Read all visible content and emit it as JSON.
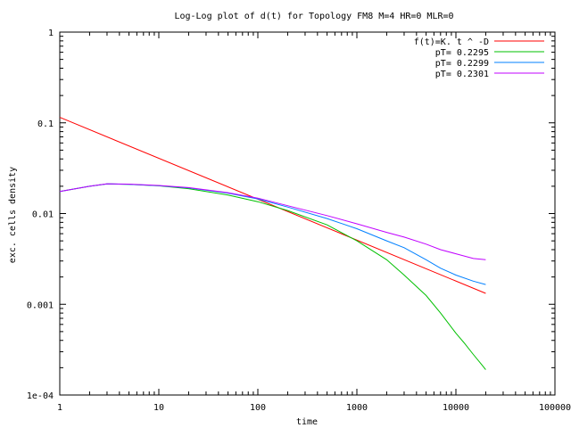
{
  "chart_data": {
    "type": "line",
    "title": "Log-Log plot of d(t) for Topology FM8 M=4 HR=0 MLR=0",
    "xlabel": "time",
    "ylabel": "exc. cells density",
    "xscale": "log",
    "yscale": "log",
    "xlim": [
      1,
      100000
    ],
    "ylim": [
      0.0001,
      1
    ],
    "x_ticks": [
      {
        "value": 1,
        "label": "1"
      },
      {
        "value": 10,
        "label": "10"
      },
      {
        "value": 100,
        "label": "100"
      },
      {
        "value": 1000,
        "label": "1000"
      },
      {
        "value": 10000,
        "label": "10000"
      },
      {
        "value": 100000,
        "label": "100000"
      }
    ],
    "y_ticks": [
      {
        "value": 0.0001,
        "label": "1e-04"
      },
      {
        "value": 0.001,
        "label": "0.001"
      },
      {
        "value": 0.01,
        "label": "0.01"
      },
      {
        "value": 0.1,
        "label": "0.1"
      },
      {
        "value": 1,
        "label": "1"
      }
    ],
    "grid": false,
    "legend_position": "top-right",
    "series": [
      {
        "name": "f(t)=K. t ^ -D",
        "color": "#ff0000",
        "points": [
          [
            1,
            0.115
          ],
          [
            20000,
            0.00132
          ]
        ]
      },
      {
        "name": "pT= 0.2295",
        "color": "#00c000",
        "points": [
          [
            1,
            0.0175
          ],
          [
            2,
            0.02
          ],
          [
            3,
            0.0212
          ],
          [
            5,
            0.021
          ],
          [
            10,
            0.0202
          ],
          [
            20,
            0.0188
          ],
          [
            50,
            0.016
          ],
          [
            100,
            0.0135
          ],
          [
            200,
            0.0108
          ],
          [
            500,
            0.0075
          ],
          [
            1000,
            0.005
          ],
          [
            2000,
            0.0031
          ],
          [
            3000,
            0.0021
          ],
          [
            5000,
            0.00125
          ],
          [
            7000,
            0.0008
          ],
          [
            10000,
            0.00048
          ],
          [
            12000,
            0.00038
          ],
          [
            15000,
            0.00028
          ],
          [
            18000,
            0.00022
          ],
          [
            20000,
            0.00019
          ]
        ]
      },
      {
        "name": "pT= 0.2299",
        "color": "#0080ff",
        "points": [
          [
            1,
            0.0175
          ],
          [
            2,
            0.02
          ],
          [
            3,
            0.0212
          ],
          [
            5,
            0.021
          ],
          [
            10,
            0.0203
          ],
          [
            20,
            0.0192
          ],
          [
            50,
            0.0168
          ],
          [
            100,
            0.0145
          ],
          [
            200,
            0.0118
          ],
          [
            500,
            0.0088
          ],
          [
            1000,
            0.0068
          ],
          [
            2000,
            0.005
          ],
          [
            3000,
            0.0042
          ],
          [
            5000,
            0.0031
          ],
          [
            7000,
            0.0025
          ],
          [
            10000,
            0.0021
          ],
          [
            15000,
            0.0018
          ],
          [
            20000,
            0.00165
          ]
        ]
      },
      {
        "name": "pT= 0.2301",
        "color": "#c000ff",
        "points": [
          [
            1,
            0.0175
          ],
          [
            2,
            0.02
          ],
          [
            3,
            0.0213
          ],
          [
            5,
            0.0211
          ],
          [
            10,
            0.0204
          ],
          [
            20,
            0.0193
          ],
          [
            50,
            0.017
          ],
          [
            100,
            0.0148
          ],
          [
            200,
            0.0122
          ],
          [
            500,
            0.0095
          ],
          [
            1000,
            0.0077
          ],
          [
            2000,
            0.0062
          ],
          [
            3000,
            0.0055
          ],
          [
            5000,
            0.0046
          ],
          [
            7000,
            0.004
          ],
          [
            10000,
            0.0036
          ],
          [
            15000,
            0.0032
          ],
          [
            20000,
            0.0031
          ]
        ]
      }
    ]
  }
}
